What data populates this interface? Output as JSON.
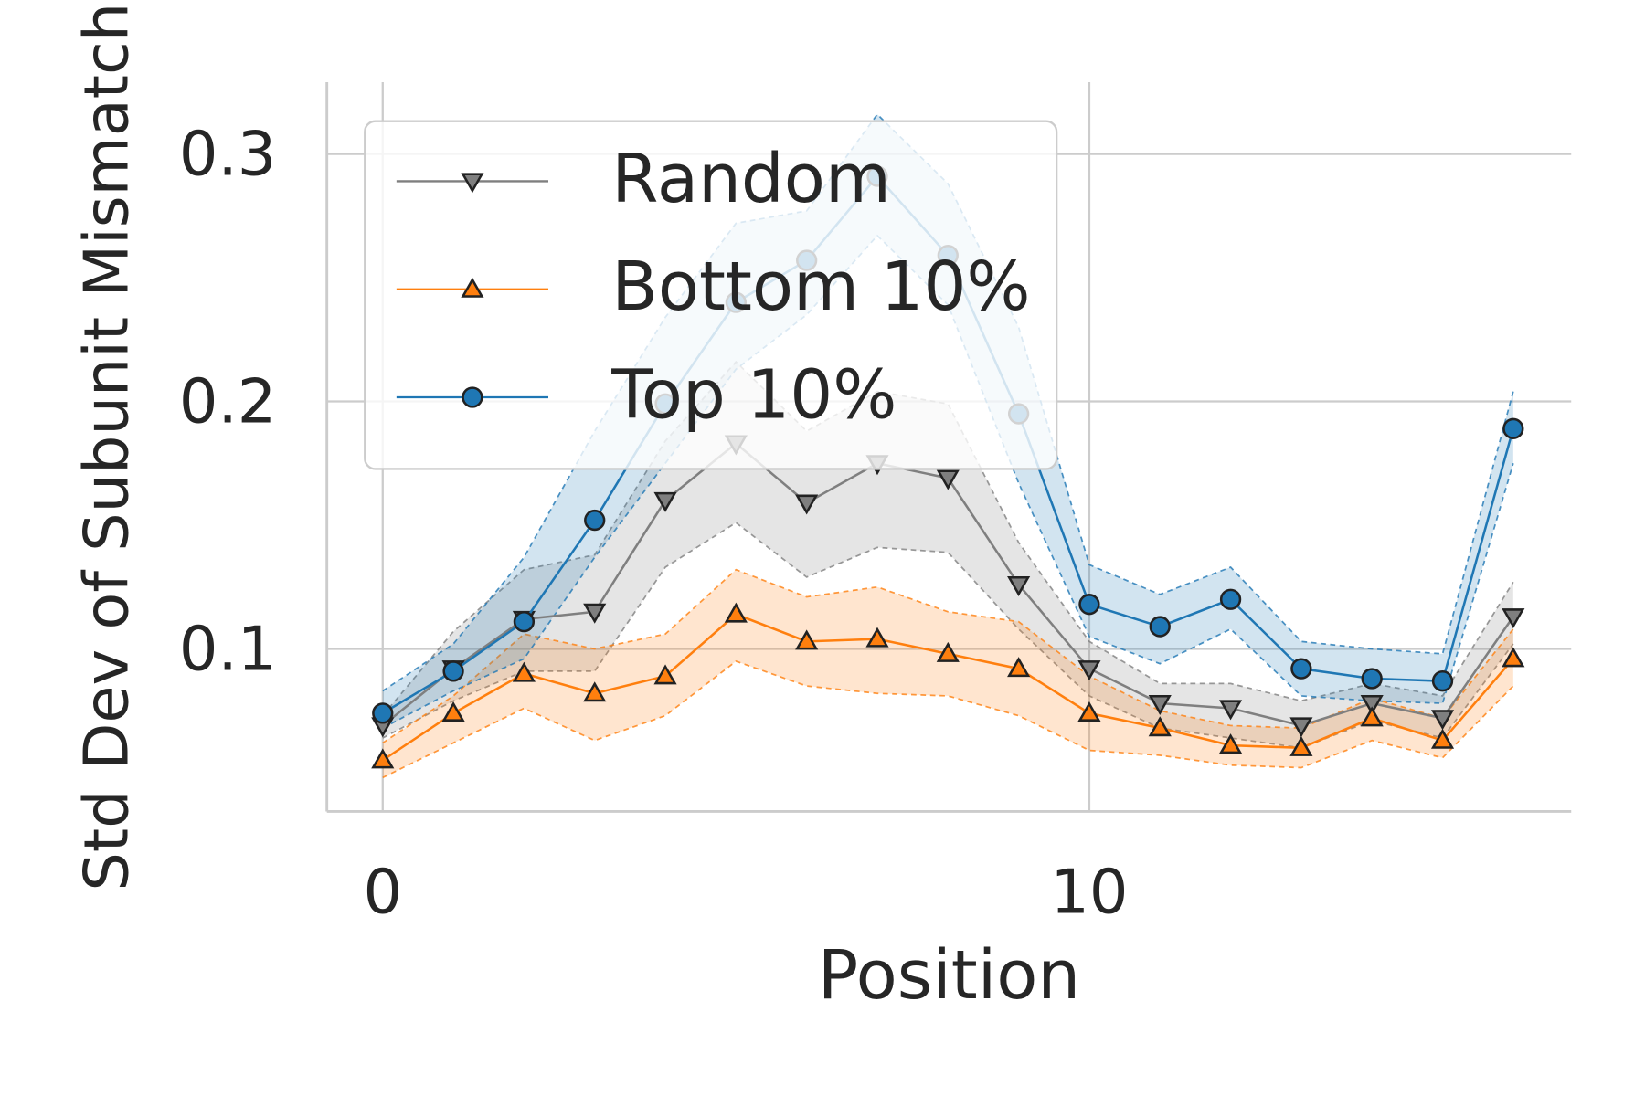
{
  "chart_data": {
    "type": "line",
    "xlabel": "Position",
    "ylabel": "Std Dev of Subunit Mismatch",
    "x": [
      0,
      1,
      2,
      3,
      4,
      5,
      6,
      7,
      8,
      9,
      10,
      11,
      12,
      13,
      14,
      15,
      16
    ],
    "xlim": [
      -0.79,
      16.82
    ],
    "xticks": [
      0,
      10
    ],
    "ylim": [
      0.0343,
      0.329
    ],
    "yticks": [
      0.1,
      0.2,
      0.3
    ],
    "grid": true,
    "legend": "upper left",
    "series": [
      {
        "name": "Random",
        "color": "#7f7f7f",
        "marker": "v",
        "values": [
          0.069,
          0.092,
          0.112,
          0.115,
          0.16,
          0.183,
          0.159,
          0.175,
          0.169,
          0.126,
          0.092,
          0.078,
          0.076,
          0.069,
          0.078,
          0.072,
          0.113
        ],
        "upper": [
          0.073,
          0.107,
          0.132,
          0.138,
          0.184,
          0.216,
          0.188,
          0.204,
          0.199,
          0.143,
          0.103,
          0.086,
          0.086,
          0.079,
          0.086,
          0.081,
          0.127
        ],
        "lower": [
          0.064,
          0.079,
          0.091,
          0.091,
          0.133,
          0.151,
          0.129,
          0.141,
          0.139,
          0.108,
          0.081,
          0.068,
          0.064,
          0.06,
          0.071,
          0.064,
          0.102
        ]
      },
      {
        "name": "Bottom 10%",
        "color": "#ff7f0e",
        "marker": "^",
        "values": [
          0.055,
          0.074,
          0.09,
          0.082,
          0.089,
          0.114,
          0.103,
          0.104,
          0.098,
          0.092,
          0.074,
          0.068,
          0.061,
          0.06,
          0.072,
          0.063,
          0.096
        ],
        "upper": [
          0.062,
          0.081,
          0.106,
          0.1,
          0.106,
          0.132,
          0.121,
          0.125,
          0.115,
          0.111,
          0.089,
          0.075,
          0.069,
          0.068,
          0.08,
          0.072,
          0.108
        ],
        "lower": [
          0.048,
          0.062,
          0.076,
          0.063,
          0.073,
          0.095,
          0.085,
          0.082,
          0.081,
          0.073,
          0.059,
          0.057,
          0.053,
          0.052,
          0.063,
          0.056,
          0.085
        ]
      },
      {
        "name": "Top 10%",
        "color": "#1f77b4",
        "marker": "o",
        "values": [
          0.074,
          0.091,
          0.111,
          0.152,
          0.199,
          0.24,
          0.257,
          0.291,
          0.259,
          0.195,
          0.118,
          0.109,
          0.12,
          0.092,
          0.088,
          0.087,
          0.189
        ],
        "upper": [
          0.083,
          0.102,
          0.137,
          0.188,
          0.234,
          0.272,
          0.277,
          0.316,
          0.288,
          0.23,
          0.134,
          0.122,
          0.133,
          0.103,
          0.1,
          0.098,
          0.204
        ],
        "lower": [
          0.068,
          0.083,
          0.096,
          0.137,
          0.175,
          0.213,
          0.235,
          0.267,
          0.239,
          0.167,
          0.105,
          0.094,
          0.108,
          0.081,
          0.079,
          0.078,
          0.175
        ]
      }
    ]
  }
}
